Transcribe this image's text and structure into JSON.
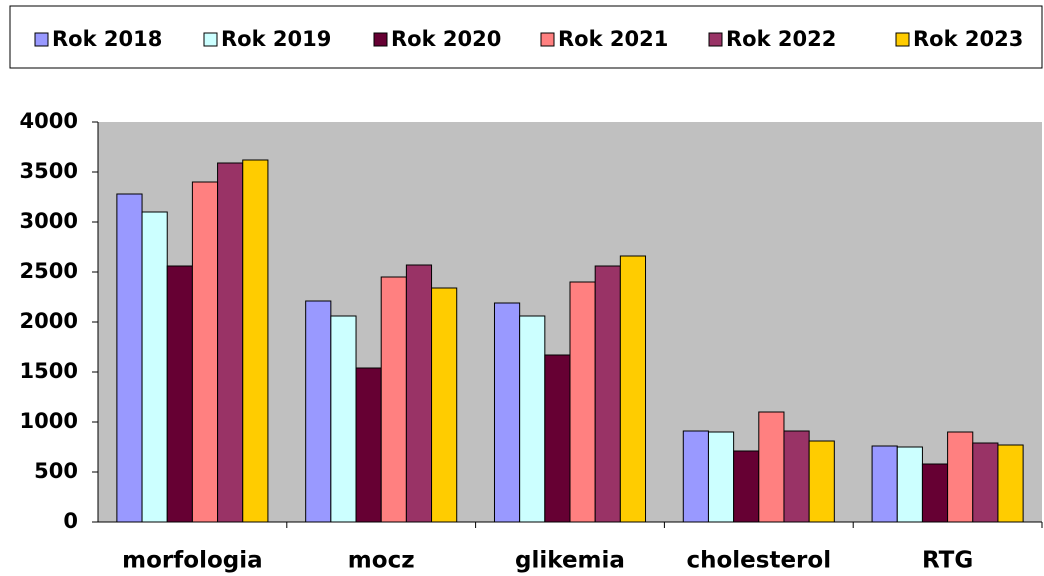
{
  "chart_data": {
    "type": "bar",
    "categories": [
      "morfologia",
      "mocz",
      "glikemia",
      "cholesterol",
      "RTG"
    ],
    "series": [
      {
        "name": "Rok 2018",
        "color": "#9999ff",
        "values": [
          3280,
          2210,
          2190,
          910,
          760
        ]
      },
      {
        "name": "Rok 2019",
        "color": "#ccffff",
        "values": [
          3100,
          2060,
          2060,
          900,
          750
        ]
      },
      {
        "name": "Rok 2020",
        "color": "#660033",
        "values": [
          2560,
          1540,
          1670,
          710,
          580
        ]
      },
      {
        "name": "Rok 2021",
        "color": "#ff8080",
        "values": [
          3400,
          2450,
          2400,
          1100,
          900
        ]
      },
      {
        "name": "Rok 2022",
        "color": "#993366",
        "values": [
          3590,
          2570,
          2560,
          910,
          790
        ]
      },
      {
        "name": "Rok 2023",
        "color": "#ffcc00",
        "values": [
          3620,
          2340,
          2660,
          810,
          770
        ]
      }
    ],
    "ylim": [
      0,
      4000
    ],
    "yticks": [
      0,
      500,
      1000,
      1500,
      2000,
      2500,
      3000,
      3500,
      4000
    ],
    "grid": false,
    "legend": "top",
    "background": "#c0c0c0"
  }
}
